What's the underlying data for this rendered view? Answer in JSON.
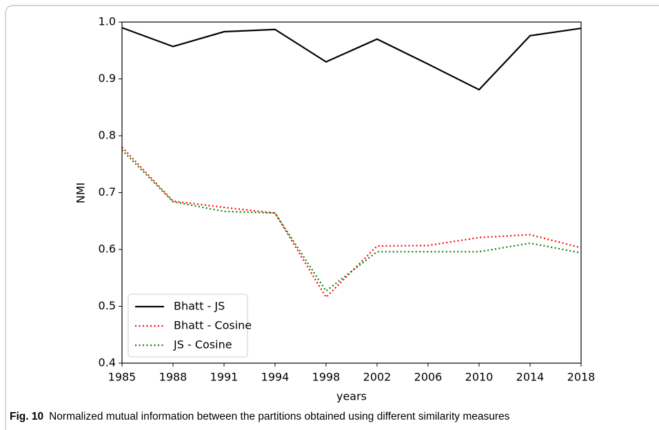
{
  "chart_data": {
    "type": "line",
    "xlabel": "years",
    "ylabel": "NMI",
    "categories": [
      "1985",
      "1988",
      "1991",
      "1994",
      "1998",
      "2002",
      "2006",
      "2010",
      "2014",
      "2018"
    ],
    "series": [
      {
        "name": "Bhatt - JS",
        "color": "#000000",
        "style": "solid",
        "values": [
          0.99,
          0.957,
          0.983,
          0.987,
          0.93,
          0.97,
          0.926,
          0.881,
          0.976,
          0.989
        ]
      },
      {
        "name": "Bhatt - Cosine",
        "color": "#ff0000",
        "style": "dotted",
        "values": [
          0.78,
          0.685,
          0.674,
          0.664,
          0.516,
          0.606,
          0.607,
          0.621,
          0.626,
          0.603
        ]
      },
      {
        "name": "JS - Cosine",
        "color": "#008000",
        "style": "dotted",
        "values": [
          0.775,
          0.684,
          0.667,
          0.664,
          0.527,
          0.596,
          0.596,
          0.596,
          0.611,
          0.594
        ]
      }
    ],
    "ylim": [
      0.4,
      1.0
    ],
    "yticks": [
      0.4,
      0.5,
      0.6,
      0.7,
      0.8,
      0.9,
      {
        "value": 1.0,
        "label": "1.0"
      }
    ],
    "legend": "lower left"
  },
  "caption": {
    "label": "Fig. 10",
    "text": "Normalized mutual information between the partitions obtained using different similarity measures"
  }
}
